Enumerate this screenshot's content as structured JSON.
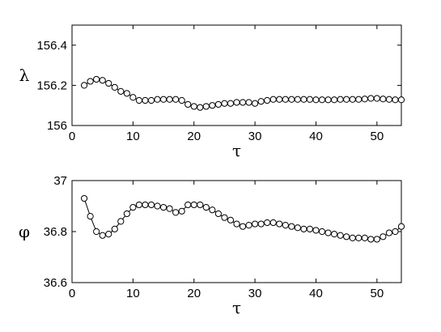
{
  "chart_data": [
    {
      "type": "line",
      "xlabel": "τ",
      "ylabel": "λ",
      "xlim": [
        0,
        54
      ],
      "ylim": [
        156,
        156.5
      ],
      "xticks": [
        0,
        10,
        20,
        30,
        40,
        50
      ],
      "yticks": [
        156,
        156.2,
        156.4
      ],
      "ytick_labels": [
        "156",
        "156.2",
        "156.4"
      ],
      "grid": false,
      "marker": "open-circle",
      "x": [
        2,
        3,
        4,
        5,
        6,
        7,
        8,
        9,
        10,
        11,
        12,
        13,
        14,
        15,
        16,
        17,
        18,
        19,
        20,
        21,
        22,
        23,
        24,
        25,
        26,
        27,
        28,
        29,
        30,
        31,
        32,
        33,
        34,
        35,
        36,
        37,
        38,
        39,
        40,
        41,
        42,
        43,
        44,
        45,
        46,
        47,
        48,
        49,
        50,
        51,
        52,
        53,
        54
      ],
      "values": [
        156.2,
        156.22,
        156.23,
        156.225,
        156.21,
        156.19,
        156.17,
        156.16,
        156.14,
        156.125,
        156.125,
        156.125,
        156.13,
        156.13,
        156.13,
        156.13,
        156.125,
        156.105,
        156.095,
        156.09,
        156.095,
        156.1,
        156.105,
        156.11,
        156.11,
        156.115,
        156.115,
        156.115,
        156.11,
        156.12,
        156.125,
        156.13,
        156.13,
        156.13,
        156.13,
        156.13,
        156.13,
        156.13,
        156.128,
        156.128,
        156.128,
        156.128,
        156.13,
        156.13,
        156.13,
        156.13,
        156.132,
        156.135,
        156.135,
        156.132,
        156.13,
        156.128,
        156.128
      ]
    },
    {
      "type": "line",
      "xlabel": "τ",
      "ylabel": "φ",
      "xlim": [
        0,
        54
      ],
      "ylim": [
        36.6,
        37
      ],
      "xticks": [
        0,
        10,
        20,
        30,
        40,
        50
      ],
      "yticks": [
        36.6,
        36.8,
        37
      ],
      "ytick_labels": [
        "36.6",
        "36.8",
        "37"
      ],
      "grid": false,
      "marker": "open-circle",
      "x": [
        2,
        3,
        4,
        5,
        6,
        7,
        8,
        9,
        10,
        11,
        12,
        13,
        14,
        15,
        16,
        17,
        18,
        19,
        20,
        21,
        22,
        23,
        24,
        25,
        26,
        27,
        28,
        29,
        30,
        31,
        32,
        33,
        34,
        35,
        36,
        37,
        38,
        39,
        40,
        41,
        42,
        43,
        44,
        45,
        46,
        47,
        48,
        49,
        50,
        51,
        52,
        53,
        54
      ],
      "values": [
        36.93,
        36.86,
        36.8,
        36.785,
        36.79,
        36.81,
        36.84,
        36.87,
        36.895,
        36.905,
        36.905,
        36.905,
        36.9,
        36.895,
        36.89,
        36.875,
        36.88,
        36.905,
        36.905,
        36.905,
        36.895,
        36.885,
        36.87,
        36.855,
        36.845,
        36.83,
        36.82,
        36.825,
        36.83,
        36.83,
        36.835,
        36.835,
        36.83,
        36.825,
        36.82,
        36.815,
        36.81,
        36.81,
        36.805,
        36.8,
        36.795,
        36.79,
        36.785,
        36.78,
        36.775,
        36.775,
        36.775,
        36.77,
        36.77,
        36.78,
        36.795,
        36.8,
        36.82
      ]
    }
  ]
}
